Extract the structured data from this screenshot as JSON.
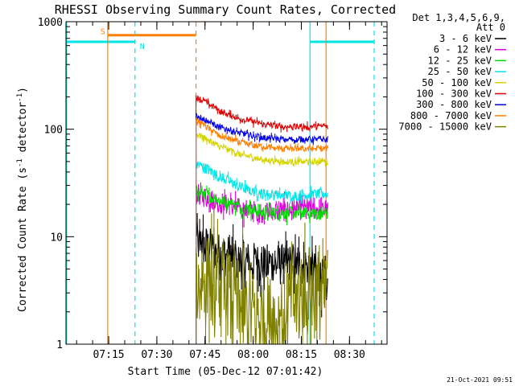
{
  "chart_data": {
    "type": "line",
    "title": "RHESSI Observing Summary Count Rates, Corrected",
    "xlabel": "Start Time (05-Dec-12 07:01:42)",
    "ylabel_main": "Corrected Count Rate (s",
    "ylabel_sup1": "-1",
    "ylabel_mid": " detector",
    "ylabel_sup2": "-1",
    "ylabel_end": ")",
    "ylabel_full": "Corrected Count Rate (s^-1 detector^-1)",
    "y_scale": "log",
    "ylim": [
      1,
      1000
    ],
    "xlim_minutes": [
      0,
      100
    ],
    "x_ticks": [
      {
        "min": 13.3,
        "label": "07:15"
      },
      {
        "min": 28.3,
        "label": "07:30"
      },
      {
        "min": 43.3,
        "label": "07:45"
      },
      {
        "min": 58.3,
        "label": "08:00"
      },
      {
        "min": 73.3,
        "label": "08:15"
      },
      {
        "min": 88.3,
        "label": "08:30"
      }
    ],
    "y_ticks": [
      {
        "value": 1,
        "label": "1"
      },
      {
        "value": 10,
        "label": "10"
      },
      {
        "value": 100,
        "label": "100"
      },
      {
        "value": 1000,
        "label": "1000"
      }
    ],
    "legend_header_1": "Det 1,3,4,5,6,9,",
    "legend_header_2": "Att 0",
    "legend_placement": "right",
    "data_start_min": 40.5,
    "data_end_min": 81.5,
    "series": [
      {
        "name": "3 - 6 keV",
        "color": "#000000",
        "values": [
          9.0,
          7.0,
          6.0,
          5.5,
          5.5,
          5.5,
          3.5
        ],
        "noise": 0.2
      },
      {
        "name": "6 - 12 keV",
        "color": "#dd00dd",
        "values": [
          25,
          21,
          18,
          17,
          17.5,
          18,
          18
        ],
        "noise": 0.1
      },
      {
        "name": "12 - 25 keV",
        "color": "#00dd00",
        "values": [
          27,
          22,
          19,
          17,
          16.5,
          16.5,
          16.5
        ],
        "noise": 0.06
      },
      {
        "name": "25 - 50 keV",
        "color": "#00e5e5",
        "values": [
          48,
          37,
          29,
          25,
          24,
          24.5,
          25
        ],
        "noise": 0.05
      },
      {
        "name": "50 - 100 keV",
        "color": "#d4d400",
        "values": [
          90,
          70,
          58,
          52,
          50,
          50,
          50
        ],
        "noise": 0.03
      },
      {
        "name": "100 - 300 keV",
        "color": "#dd0000",
        "values": [
          200,
          150,
          125,
          112,
          105,
          105,
          107
        ],
        "noise": 0.03
      },
      {
        "name": "300 - 800 keV",
        "color": "#0000ee",
        "values": [
          135,
          105,
          92,
          84,
          80,
          80,
          80
        ],
        "noise": 0.03
      },
      {
        "name": "800 - 7000 keV",
        "color": "#ff7f00",
        "values": [
          120,
          88,
          75,
          69,
          66,
          66,
          66
        ],
        "noise": 0.03
      },
      {
        "name": "7000 - 15000 keV",
        "color": "#808000",
        "values": [
          4.5,
          3.0,
          2.2,
          1.6,
          1.8,
          3.0,
          3.0
        ],
        "noise": 0.45
      }
    ],
    "orbit_markers": {
      "saa_label": "S",
      "night_label": "N",
      "saa_bar": {
        "start_min": 13.0,
        "end_min": 40.5,
        "value": 750,
        "color": "#ff7f00"
      },
      "night_bars": [
        {
          "start_min": 0,
          "end_min": 21.5,
          "value": 650,
          "color": "#00e5e5"
        },
        {
          "start_min": 76.0,
          "end_min": 96.0,
          "value": 650,
          "color": "#00e5e5"
        }
      ],
      "vertical_lines": [
        {
          "min": 13.0,
          "color": "#ff7f00",
          "style": "solid"
        },
        {
          "min": 21.5,
          "color": "#00e5e5",
          "style": "dashed"
        },
        {
          "min": 40.5,
          "color": "#ff7f00",
          "style": "dashed"
        },
        {
          "min": 76.0,
          "color": "#00e5e5",
          "style": "solid"
        },
        {
          "min": 81.0,
          "color": "#ff7f00",
          "style": "solid"
        },
        {
          "min": 96.0,
          "color": "#00e5e5",
          "style": "dashed"
        },
        {
          "min": 0.2,
          "color": "#00e5e5",
          "style": "solid"
        }
      ]
    }
  },
  "footer_timestamp": "21-Oct-2021 09:51"
}
